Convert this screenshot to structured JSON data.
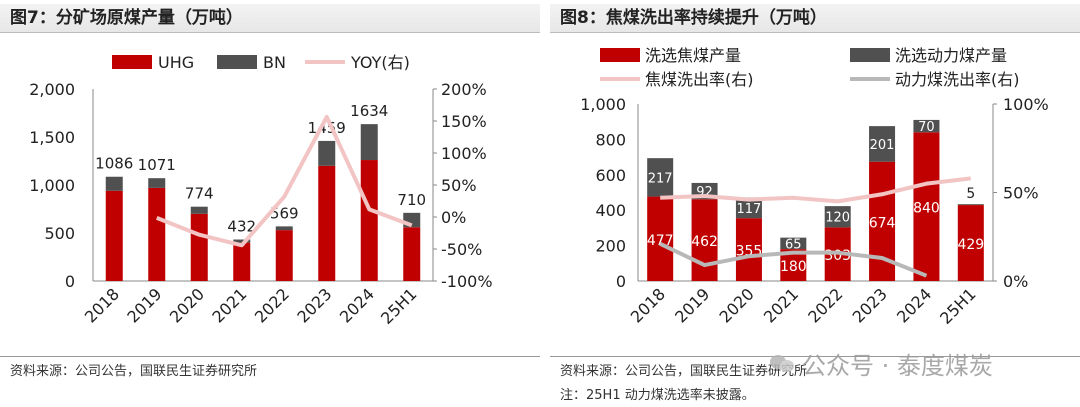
{
  "colors": {
    "red": "#c00000",
    "gray": "#505050",
    "pink": "#f2c4c4",
    "lightgray": "#b8b8b8"
  },
  "left": {
    "title": "图7：分矿场原煤产量（万吨）",
    "source": "资料来源：公司公告，国联民生证券研究所",
    "chart_data": {
      "type": "bar",
      "stacked": true,
      "categories": [
        "2018",
        "2019",
        "2020",
        "2021",
        "2022",
        "2023",
        "2024",
        "25H1"
      ],
      "series": [
        {
          "name": "UHG",
          "values": [
            940,
            970,
            700,
            400,
            530,
            1200,
            1260,
            560
          ]
        },
        {
          "name": "BN",
          "values": [
            146,
            101,
            74,
            32,
            39,
            259,
            374,
            150
          ]
        }
      ],
      "line_series": [
        {
          "name": "YOY(右)",
          "x_start": "2019",
          "values": [
            -1.4,
            -27.7,
            -44.2,
            31.7,
            156.4,
            12.0,
            -13.1
          ]
        }
      ],
      "totals": [
        "1086",
        "1071",
        "774",
        "432",
        "569",
        "1459",
        "1634",
        "710"
      ],
      "ylim": [
        0,
        2000
      ],
      "y2lim": [
        -100,
        200
      ],
      "yticks": [
        "0",
        "500",
        "1,000",
        "1,500",
        "2,000"
      ],
      "y2ticks": [
        "-100%",
        "-50%",
        "0%",
        "50%",
        "100%",
        "150%",
        "200%"
      ],
      "legend": [
        "UHG",
        "BN",
        "YOY(右)"
      ],
      "legend_position": "top"
    }
  },
  "right": {
    "title": "图8：焦煤洗出率持续提升（万吨）",
    "source": "资料来源：公司公告，国联民生证券研究所",
    "note": "注：25H1 动力煤洗选率未披露。",
    "chart_data": {
      "type": "bar",
      "stacked": true,
      "categories": [
        "2018",
        "2019",
        "2020",
        "2021",
        "2022",
        "2023",
        "2024",
        "25H1"
      ],
      "series": [
        {
          "name": "洗选焦煤产量",
          "values": [
            477,
            462,
            355,
            180,
            303,
            674,
            840,
            429
          ],
          "labels": [
            "477",
            "462",
            "355",
            "180",
            "303",
            "674",
            "840",
            "429"
          ]
        },
        {
          "name": "洗选动力煤产量",
          "values": [
            217,
            92,
            117,
            65,
            120,
            201,
            70,
            5
          ],
          "labels": [
            "217",
            "92",
            "117",
            "65",
            "120",
            "201",
            "70",
            "5"
          ]
        }
      ],
      "line_series": [
        {
          "name": "焦煤洗出率(右)",
          "values": [
            47,
            48,
            46,
            47,
            45,
            49,
            55,
            58
          ]
        },
        {
          "name": "动力煤洗出率(右)",
          "values": [
            21,
            9,
            14,
            16,
            16,
            13,
            3
          ]
        }
      ],
      "ylim": [
        0,
        1000
      ],
      "y2lim": [
        0,
        100
      ],
      "yticks": [
        "0",
        "200",
        "400",
        "600",
        "800",
        "1,000"
      ],
      "y2ticks": [
        "0%",
        "50%",
        "100%"
      ],
      "legend": [
        "洗选焦煤产量",
        "洗选动力煤产量",
        "焦煤洗出率(右)",
        "动力煤洗出率(右)"
      ],
      "legend_position": "top"
    }
  },
  "watermark": {
    "text": "公众号 · 泰度煤炭"
  }
}
